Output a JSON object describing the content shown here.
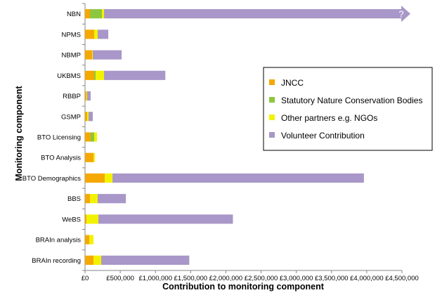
{
  "chart_data": {
    "type": "bar",
    "orientation": "horizontal",
    "stacked": true,
    "title": "",
    "xlabel": "Contribution to monitoring component",
    "ylabel": "Monitoring component",
    "xlim": [
      0,
      4500000
    ],
    "x_ticks": [
      "£0",
      "£500,000",
      "£1,000,000",
      "£1,500,000",
      "£2,000,000",
      "£2,500,000",
      "£3,000,000",
      "£3,500,000",
      "£4,000,000",
      "£4,500,000"
    ],
    "categories": [
      "NBN",
      "NPMS",
      "NBMP",
      "UKBMS",
      "RBBP",
      "GSMP",
      "BTO Licensing",
      "BTO Analysis",
      "BTO Demographics",
      "BBS",
      "WeBS",
      "BRAIn analysis",
      "BRAIn recording"
    ],
    "series": [
      {
        "name": "JNCC",
        "color": "#F5A800",
        "values": [
          70000,
          130000,
          100000,
          130000,
          20000,
          30000,
          80000,
          120000,
          280000,
          70000,
          20000,
          60000,
          120000
        ]
      },
      {
        "name": "Statutory Nature Conservation Bodies",
        "color": "#8DC63F",
        "values": [
          170000,
          0,
          0,
          20000,
          0,
          0,
          50000,
          0,
          0,
          0,
          0,
          0,
          0
        ]
      },
      {
        "name": "Other partners e.g. NGOs",
        "color": "#F2F200",
        "values": [
          30000,
          50000,
          10000,
          120000,
          10000,
          20000,
          40000,
          20000,
          110000,
          110000,
          170000,
          60000,
          110000
        ]
      },
      {
        "name": "Volunteer Contribution",
        "color": "#A897C8",
        "values": [
          4230000,
          150000,
          410000,
          870000,
          50000,
          60000,
          0,
          0,
          3570000,
          400000,
          1910000,
          0,
          1250000
        ]
      }
    ],
    "annotations": [
      {
        "category": "NBN",
        "text": "?",
        "note": "bar extends beyond axis maximum"
      }
    ],
    "legend_position": "right",
    "grid": false
  }
}
